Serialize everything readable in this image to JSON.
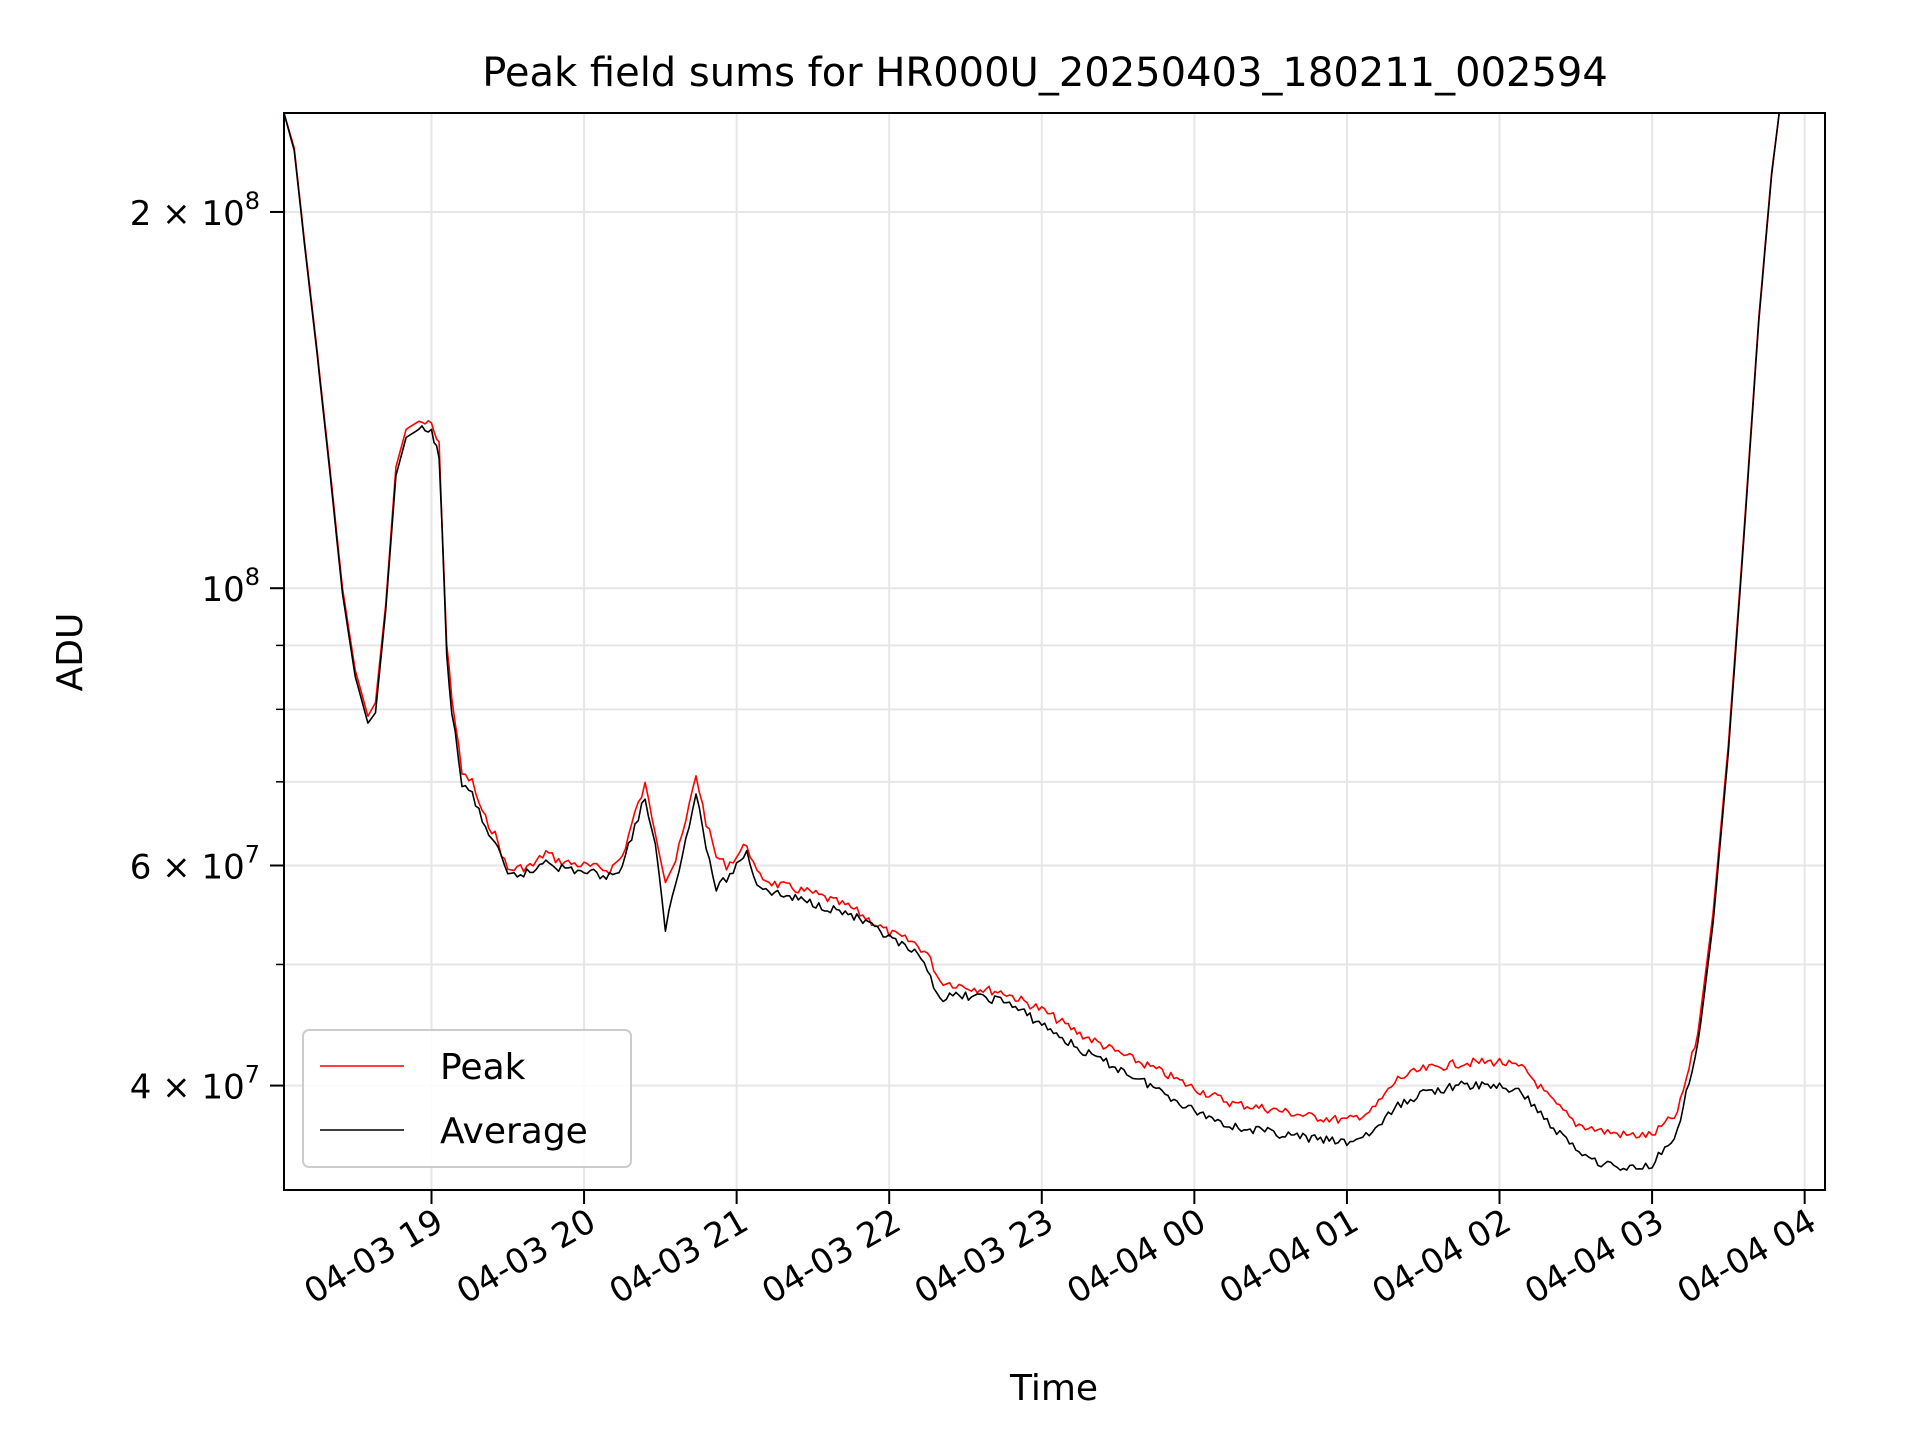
{
  "chart_data": {
    "type": "line",
    "title": "Peak field sums for HR000U_20250403_180211_002594",
    "xlabel": "Time",
    "ylabel": "ADU",
    "x_scale": "time",
    "y_scale": "log",
    "xlim": [
      "2025-04-03 18:02",
      "2025-04-04 04:08"
    ],
    "ylim": [
      33000000,
      240000000
    ],
    "x_ticks": [
      {
        "t": "2025-04-03 19:00",
        "label": "04-03 19"
      },
      {
        "t": "2025-04-03 20:00",
        "label": "04-03 20"
      },
      {
        "t": "2025-04-03 21:00",
        "label": "04-03 21"
      },
      {
        "t": "2025-04-03 22:00",
        "label": "04-03 22"
      },
      {
        "t": "2025-04-03 23:00",
        "label": "04-03 23"
      },
      {
        "t": "2025-04-04 00:00",
        "label": "04-04 00"
      },
      {
        "t": "2025-04-04 01:00",
        "label": "04-04 01"
      },
      {
        "t": "2025-04-04 02:00",
        "label": "04-04 02"
      },
      {
        "t": "2025-04-04 03:00",
        "label": "04-04 03"
      },
      {
        "t": "2025-04-04 04:00",
        "label": "04-04 04"
      }
    ],
    "y_major_ticks": [
      {
        "v": 40000000,
        "base": "4 × 10",
        "exp": "7"
      },
      {
        "v": 60000000,
        "base": "6 × 10",
        "exp": "7"
      },
      {
        "v": 100000000,
        "base": "10",
        "exp": "8"
      },
      {
        "v": 200000000,
        "base": "2 × 10",
        "exp": "8"
      }
    ],
    "y_minor_ticks": [
      50000000,
      70000000,
      80000000,
      90000000
    ],
    "grid": true,
    "legend_position": "lower-left",
    "series": [
      {
        "name": "Peak",
        "color": "#ff0000",
        "points": [
          [
            "2025-04-03 18:02",
            240000000
          ],
          [
            "2025-04-03 18:06",
            225000000
          ],
          [
            "2025-04-03 18:10",
            190000000
          ],
          [
            "2025-04-03 18:15",
            155000000
          ],
          [
            "2025-04-03 18:20",
            125000000
          ],
          [
            "2025-04-03 18:25",
            100000000
          ],
          [
            "2025-04-03 18:30",
            86000000
          ],
          [
            "2025-04-03 18:35",
            79000000
          ],
          [
            "2025-04-03 18:38",
            81000000
          ],
          [
            "2025-04-03 18:42",
            97000000
          ],
          [
            "2025-04-03 18:46",
            125000000
          ],
          [
            "2025-04-03 18:50",
            134000000
          ],
          [
            "2025-04-03 18:55",
            136000000
          ],
          [
            "2025-04-03 19:00",
            135000000
          ],
          [
            "2025-04-03 19:03",
            130000000
          ],
          [
            "2025-04-03 19:06",
            90000000
          ],
          [
            "2025-04-03 19:08",
            82000000
          ],
          [
            "2025-04-03 19:12",
            71000000
          ],
          [
            "2025-04-03 19:16",
            70000000
          ],
          [
            "2025-04-03 19:20",
            66000000
          ],
          [
            "2025-04-03 19:25",
            63500000
          ],
          [
            "2025-04-03 19:30",
            59500000
          ],
          [
            "2025-04-03 19:40",
            60000000
          ],
          [
            "2025-04-03 19:45",
            61500000
          ],
          [
            "2025-04-03 19:50",
            60500000
          ],
          [
            "2025-04-03 20:00",
            60000000
          ],
          [
            "2025-04-03 20:10",
            59500000
          ],
          [
            "2025-04-03 20:15",
            61000000
          ],
          [
            "2025-04-03 20:20",
            66000000
          ],
          [
            "2025-04-03 20:24",
            69500000
          ],
          [
            "2025-04-03 20:28",
            64000000
          ],
          [
            "2025-04-03 20:32",
            58500000
          ],
          [
            "2025-04-03 20:36",
            60500000
          ],
          [
            "2025-04-03 20:40",
            65000000
          ],
          [
            "2025-04-03 20:44",
            71000000
          ],
          [
            "2025-04-03 20:48",
            65000000
          ],
          [
            "2025-04-03 20:52",
            61000000
          ],
          [
            "2025-04-03 20:56",
            60000000
          ],
          [
            "2025-04-03 21:00",
            61000000
          ],
          [
            "2025-04-03 21:04",
            62500000
          ],
          [
            "2025-04-03 21:08",
            59000000
          ],
          [
            "2025-04-03 21:15",
            58000000
          ],
          [
            "2025-04-03 21:30",
            57000000
          ],
          [
            "2025-04-03 21:45",
            55500000
          ],
          [
            "2025-04-03 22:00",
            53000000
          ],
          [
            "2025-04-03 22:10",
            52000000
          ],
          [
            "2025-04-03 22:15",
            51000000
          ],
          [
            "2025-04-03 22:20",
            48500000
          ],
          [
            "2025-04-03 22:30",
            48000000
          ],
          [
            "2025-04-03 22:45",
            47500000
          ],
          [
            "2025-04-03 23:00",
            46000000
          ],
          [
            "2025-04-03 23:15",
            44000000
          ],
          [
            "2025-04-03 23:30",
            42500000
          ],
          [
            "2025-04-03 23:45",
            41200000
          ],
          [
            "2025-04-04 00:00",
            39800000
          ],
          [
            "2025-04-04 00:15",
            38700000
          ],
          [
            "2025-04-04 00:30",
            38300000
          ],
          [
            "2025-04-04 00:45",
            37800000
          ],
          [
            "2025-04-04 01:00",
            37500000
          ],
          [
            "2025-04-04 01:10",
            38200000
          ],
          [
            "2025-04-04 01:20",
            40500000
          ],
          [
            "2025-04-04 01:30",
            41200000
          ],
          [
            "2025-04-04 01:45",
            41700000
          ],
          [
            "2025-04-04 02:00",
            41800000
          ],
          [
            "2025-04-04 02:10",
            41200000
          ],
          [
            "2025-04-04 02:20",
            39000000
          ],
          [
            "2025-04-04 02:30",
            37300000
          ],
          [
            "2025-04-04 02:40",
            36800000
          ],
          [
            "2025-04-04 02:50",
            36500000
          ],
          [
            "2025-04-04 03:00",
            36500000
          ],
          [
            "2025-04-04 03:10",
            38000000
          ],
          [
            "2025-04-04 03:18",
            44000000
          ],
          [
            "2025-04-04 03:24",
            55000000
          ],
          [
            "2025-04-04 03:30",
            75000000
          ],
          [
            "2025-04-04 03:36",
            110000000
          ],
          [
            "2025-04-04 03:42",
            165000000
          ],
          [
            "2025-04-04 03:47",
            215000000
          ],
          [
            "2025-04-04 03:50",
            240000000
          ]
        ]
      },
      {
        "name": "Average",
        "color": "#000000",
        "points": [
          [
            "2025-04-03 18:02",
            240000000
          ],
          [
            "2025-04-03 18:06",
            224000000
          ],
          [
            "2025-04-03 18:10",
            189000000
          ],
          [
            "2025-04-03 18:15",
            154000000
          ],
          [
            "2025-04-03 18:20",
            124000000
          ],
          [
            "2025-04-03 18:25",
            99000000
          ],
          [
            "2025-04-03 18:30",
            85000000
          ],
          [
            "2025-04-03 18:35",
            78000000
          ],
          [
            "2025-04-03 18:38",
            79500000
          ],
          [
            "2025-04-03 18:42",
            96000000
          ],
          [
            "2025-04-03 18:46",
            123000000
          ],
          [
            "2025-04-03 18:50",
            132000000
          ],
          [
            "2025-04-03 18:55",
            134000000
          ],
          [
            "2025-04-03 19:00",
            133000000
          ],
          [
            "2025-04-03 19:03",
            128000000
          ],
          [
            "2025-04-03 19:06",
            88000000
          ],
          [
            "2025-04-03 19:08",
            80000000
          ],
          [
            "2025-04-03 19:12",
            69500000
          ],
          [
            "2025-04-03 19:16",
            68500000
          ],
          [
            "2025-04-03 19:20",
            65000000
          ],
          [
            "2025-04-03 19:25",
            62500000
          ],
          [
            "2025-04-03 19:30",
            58800000
          ],
          [
            "2025-04-03 19:40",
            59300000
          ],
          [
            "2025-04-03 19:45",
            60800000
          ],
          [
            "2025-04-03 19:50",
            59800000
          ],
          [
            "2025-04-03 20:00",
            59300000
          ],
          [
            "2025-04-03 20:10",
            58800000
          ],
          [
            "2025-04-03 20:15",
            60000000
          ],
          [
            "2025-04-03 20:20",
            64500000
          ],
          [
            "2025-04-03 20:24",
            68000000
          ],
          [
            "2025-04-03 20:28",
            62000000
          ],
          [
            "2025-04-03 20:32",
            53500000
          ],
          [
            "2025-04-03 20:36",
            58000000
          ],
          [
            "2025-04-03 20:40",
            63000000
          ],
          [
            "2025-04-03 20:44",
            69000000
          ],
          [
            "2025-04-03 20:48",
            62000000
          ],
          [
            "2025-04-03 20:52",
            57500000
          ],
          [
            "2025-04-03 20:56",
            58500000
          ],
          [
            "2025-04-03 21:00",
            60000000
          ],
          [
            "2025-04-03 21:04",
            61500000
          ],
          [
            "2025-04-03 21:08",
            58000000
          ],
          [
            "2025-04-03 21:15",
            57000000
          ],
          [
            "2025-04-03 21:30",
            56000000
          ],
          [
            "2025-04-03 21:45",
            54800000
          ],
          [
            "2025-04-03 22:00",
            52500000
          ],
          [
            "2025-04-03 22:10",
            51000000
          ],
          [
            "2025-04-03 22:15",
            49500000
          ],
          [
            "2025-04-03 22:20",
            47000000
          ],
          [
            "2025-04-03 22:30",
            47200000
          ],
          [
            "2025-04-03 22:45",
            46800000
          ],
          [
            "2025-04-03 23:00",
            44800000
          ],
          [
            "2025-04-03 23:15",
            42700000
          ],
          [
            "2025-04-03 23:30",
            41300000
          ],
          [
            "2025-04-03 23:45",
            39800000
          ],
          [
            "2025-04-04 00:00",
            38200000
          ],
          [
            "2025-04-04 00:15",
            37100000
          ],
          [
            "2025-04-04 00:30",
            36700000
          ],
          [
            "2025-04-04 00:45",
            36300000
          ],
          [
            "2025-04-04 01:00",
            36000000
          ],
          [
            "2025-04-04 01:10",
            36700000
          ],
          [
            "2025-04-04 01:20",
            38500000
          ],
          [
            "2025-04-04 01:30",
            39500000
          ],
          [
            "2025-04-04 01:45",
            40000000
          ],
          [
            "2025-04-04 02:00",
            40000000
          ],
          [
            "2025-04-04 02:10",
            39300000
          ],
          [
            "2025-04-04 02:20",
            37200000
          ],
          [
            "2025-04-04 02:30",
            35600000
          ],
          [
            "2025-04-04 02:40",
            34700000
          ],
          [
            "2025-04-04 02:50",
            34300000
          ],
          [
            "2025-04-04 03:00",
            34600000
          ],
          [
            "2025-04-04 03:10",
            36800000
          ],
          [
            "2025-04-04 03:18",
            43000000
          ],
          [
            "2025-04-04 03:24",
            54000000
          ],
          [
            "2025-04-04 03:30",
            74000000
          ],
          [
            "2025-04-04 03:36",
            109000000
          ],
          [
            "2025-04-04 03:42",
            164000000
          ],
          [
            "2025-04-04 03:47",
            214000000
          ],
          [
            "2025-04-04 03:50",
            240000000
          ]
        ]
      }
    ]
  }
}
